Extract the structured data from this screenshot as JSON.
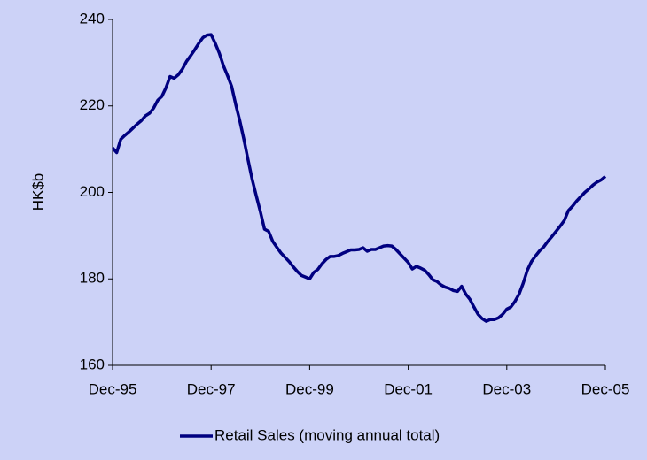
{
  "chart_data": {
    "type": "line",
    "y_label": "HK$b",
    "categories": [
      "Dec-95",
      null,
      null,
      null,
      null,
      null,
      null,
      null,
      null,
      null,
      null,
      null,
      null,
      null,
      null,
      null,
      null,
      null,
      null,
      null,
      null,
      null,
      null,
      null,
      "Dec-97",
      null,
      null,
      null,
      null,
      null,
      null,
      null,
      null,
      null,
      null,
      null,
      null,
      null,
      null,
      null,
      null,
      null,
      null,
      null,
      null,
      null,
      null,
      null,
      "Dec-99",
      null,
      null,
      null,
      null,
      null,
      null,
      null,
      null,
      null,
      null,
      null,
      null,
      null,
      null,
      null,
      null,
      null,
      null,
      null,
      null,
      null,
      null,
      null,
      "Dec-01",
      null,
      null,
      null,
      null,
      null,
      null,
      null,
      null,
      null,
      null,
      null,
      null,
      null,
      null,
      null,
      null,
      null,
      null,
      null,
      null,
      null,
      null,
      null,
      "Dec-03",
      null,
      null,
      null,
      null,
      null,
      null,
      null,
      null,
      null,
      null,
      null,
      null,
      null,
      null,
      null,
      null,
      null,
      null,
      null,
      null,
      null,
      null,
      null,
      "Dec-05"
    ],
    "series": [
      {
        "name": "Retail Sales (moving annual total)",
        "color": "#000080",
        "values": [
          210.3,
          209.2,
          212.3,
          213.2,
          214.0,
          214.9,
          215.8,
          216.6,
          217.7,
          218.3,
          219.5,
          221.3,
          222.2,
          224.2,
          226.8,
          226.4,
          227.2,
          228.5,
          230.3,
          231.6,
          233.0,
          234.5,
          235.8,
          236.4,
          236.5,
          234.5,
          232.2,
          229.3,
          227.0,
          224.5,
          220.3,
          216.5,
          212.2,
          207.5,
          203.0,
          199.2,
          195.5,
          191.5,
          191.0,
          188.7,
          187.3,
          186.0,
          185.0,
          184.0,
          182.8,
          181.7,
          180.8,
          180.4,
          180.0,
          181.5,
          182.2,
          183.5,
          184.5,
          185.2,
          185.2,
          185.4,
          185.9,
          186.3,
          186.7,
          186.7,
          186.8,
          187.2,
          186.4,
          186.8,
          186.8,
          187.2,
          187.6,
          187.7,
          187.6,
          186.8,
          185.8,
          184.8,
          183.8,
          182.3,
          182.9,
          182.5,
          182.0,
          181.0,
          179.8,
          179.4,
          178.6,
          178.1,
          177.8,
          177.3,
          177.1,
          178.3,
          176.5,
          175.3,
          173.5,
          171.8,
          170.8,
          170.2,
          170.6,
          170.6,
          171.0,
          171.8,
          173.0,
          173.5,
          174.8,
          176.5,
          179.0,
          182.0,
          184.0,
          185.3,
          186.5,
          187.4,
          188.7,
          189.8,
          191.0,
          192.2,
          193.5,
          195.8,
          196.8,
          198.0,
          199.0,
          200.0,
          200.8,
          201.7,
          202.4,
          202.9,
          203.7
        ]
      }
    ],
    "ylim": [
      160,
      240
    ],
    "yticks": [
      160,
      180,
      200,
      220,
      240
    ],
    "legend": "bottom"
  }
}
